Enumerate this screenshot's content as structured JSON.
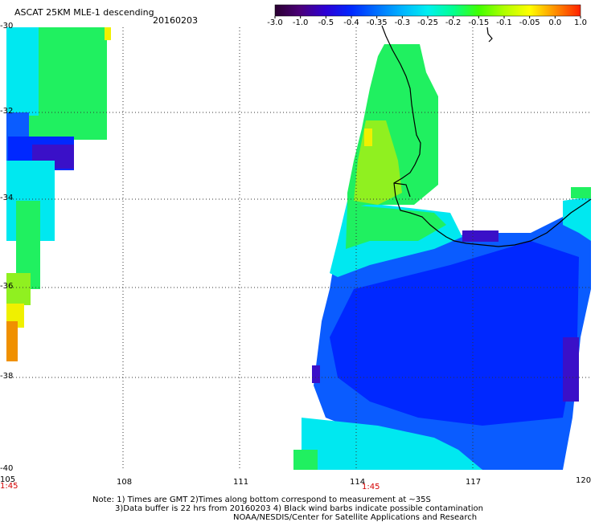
{
  "header": {
    "title": "ASCAT 25KM MLE-1 descending",
    "date": "20160203"
  },
  "colorbar": {
    "tick_labels": [
      "-3.0",
      "-1.0",
      "-0.5",
      "-0.4",
      "-0.35",
      "-0.3",
      "-0.25",
      "-0.2",
      "-0.15",
      "-0.1",
      "-0.05",
      "0.0",
      "1.0"
    ],
    "colors": [
      "#2a0030",
      "#4b007a",
      "#2c00d6",
      "#0028ff",
      "#0070ff",
      "#00b4ff",
      "#00f0f0",
      "#00ff90",
      "#40ff00",
      "#b0ff00",
      "#ffff00",
      "#ff9000",
      "#ff2000"
    ]
  },
  "axes": {
    "lat_labels": [
      "-30",
      "-32",
      "-34",
      "-36",
      "-38",
      "-40"
    ],
    "lon_labels": [
      "105",
      "108",
      "111",
      "114",
      "117",
      "120"
    ],
    "time_labels": [
      "1:45",
      "1:45"
    ]
  },
  "notes": {
    "line1": "Note: 1) Times are GMT 2)Times along bottom correspond to measurement at ~35S",
    "line2": "3)Data buffer is 22 hrs from 20160203 4) Black wind barbs indicate possible contamination",
    "line3": "NOAA/NESDIS/Center for Satellite Applications and Research"
  },
  "map_colors": {
    "deep_blue": "#0028ff",
    "mid_blue": "#0a5cff",
    "violet": "#3a10c8",
    "cyan": "#00e8f0",
    "green": "#20f060",
    "lime": "#90f020",
    "yellow": "#f0f000",
    "orange": "#f09000",
    "coast": "#000000"
  }
}
